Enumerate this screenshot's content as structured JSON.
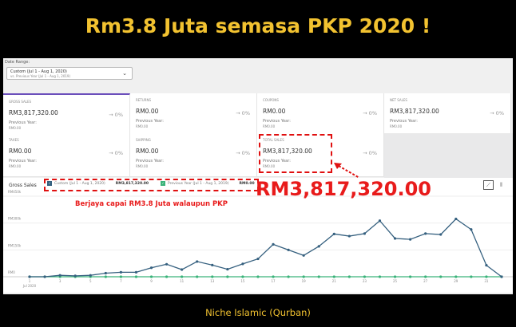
{
  "title": "Rm3.8 Juta semasa PKP 2020 !",
  "footer": "Niche Islamic (Qurban)",
  "date_range": {
    "label": "Date Range:",
    "value": "Custom (Jul 1 - Aug 1, 2020)",
    "compare": "vs. Previous Year (Jul 1 - Aug 1, 2019)"
  },
  "cards": [
    {
      "label": "Gross Sales",
      "value": "RM3,817,320.00",
      "change": "→ 0%",
      "prev_label": "Previous Year:",
      "prev_value": "RM0.00"
    },
    {
      "label": "Returns",
      "value": "RM0.00",
      "change": "→ 0%",
      "prev_label": "Previous Year:",
      "prev_value": "RM0.00"
    },
    {
      "label": "Coupons",
      "value": "RM0.00",
      "change": "→ 0%",
      "prev_label": "Previous Year:",
      "prev_value": "RM0.00"
    },
    {
      "label": "Net Sales",
      "value": "RM3,817,320.00",
      "change": "→ 0%",
      "prev_label": "Previous Year:",
      "prev_value": "RM0.00"
    },
    {
      "label": "Taxes",
      "value": "RM0.00",
      "change": "→ 0%",
      "prev_label": "Previous Year:",
      "prev_value": "RM0.00"
    },
    {
      "label": "Shipping",
      "value": "RM0.00",
      "change": "→ 0%",
      "prev_label": "Previous Year:",
      "prev_value": "RM0.00"
    },
    {
      "label": "Total Sales",
      "value": "RM3,817,320.00",
      "change": "→ 0%",
      "prev_label": "Previous Year:",
      "prev_value": "RM0.00"
    }
  ],
  "chart_header": "Gross Sales",
  "legend": [
    {
      "label": "Custom (Jul 1 - Aug 1, 2020)",
      "total": "RM3,817,320.00",
      "color": "#35607f"
    },
    {
      "label": "Previous Year (Jul 1 - Aug 1, 2019)",
      "total": "RM0.00",
      "color": "#3bb37a"
    }
  ],
  "annotations": {
    "big": "RM3,817,320.00",
    "note": "Berjaya capai RM3.8 Juta walaupun PKP"
  },
  "icons": {
    "line": "line-chart-icon",
    "bar": "bar-chart-icon"
  },
  "chart_data": {
    "type": "line",
    "y_ticks": [
      "RM450k",
      "RM300k",
      "RM150k",
      "RM0"
    ],
    "ylim": [
      0,
      450000
    ],
    "x_ticks": [
      "1",
      "3",
      "5",
      "7",
      "9",
      "11",
      "13",
      "15",
      "17",
      "19",
      "21",
      "23",
      "25",
      "27",
      "29",
      "31"
    ],
    "x_sublabel": "Jul 2020",
    "grid": true,
    "series": [
      {
        "name": "Custom (Jul 1 - Aug 1, 2020)",
        "color": "#35607f",
        "values": [
          0,
          0,
          8000,
          5000,
          8000,
          20000,
          25000,
          25000,
          50000,
          70000,
          40000,
          85000,
          65000,
          42000,
          72000,
          100000,
          181000,
          150000,
          119000,
          170000,
          239000,
          227000,
          241000,
          313000,
          214000,
          209000,
          241000,
          236000,
          323000,
          264000,
          64000,
          0
        ]
      },
      {
        "name": "Previous Year (Jul 1 - Aug 1, 2019)",
        "color": "#3bb37a",
        "values": [
          0,
          0,
          0,
          0,
          0,
          0,
          0,
          0,
          0,
          0,
          0,
          0,
          0,
          0,
          0,
          0,
          0,
          0,
          0,
          0,
          0,
          0,
          0,
          0,
          0,
          0,
          0,
          0,
          0,
          0,
          0,
          0
        ]
      }
    ]
  }
}
